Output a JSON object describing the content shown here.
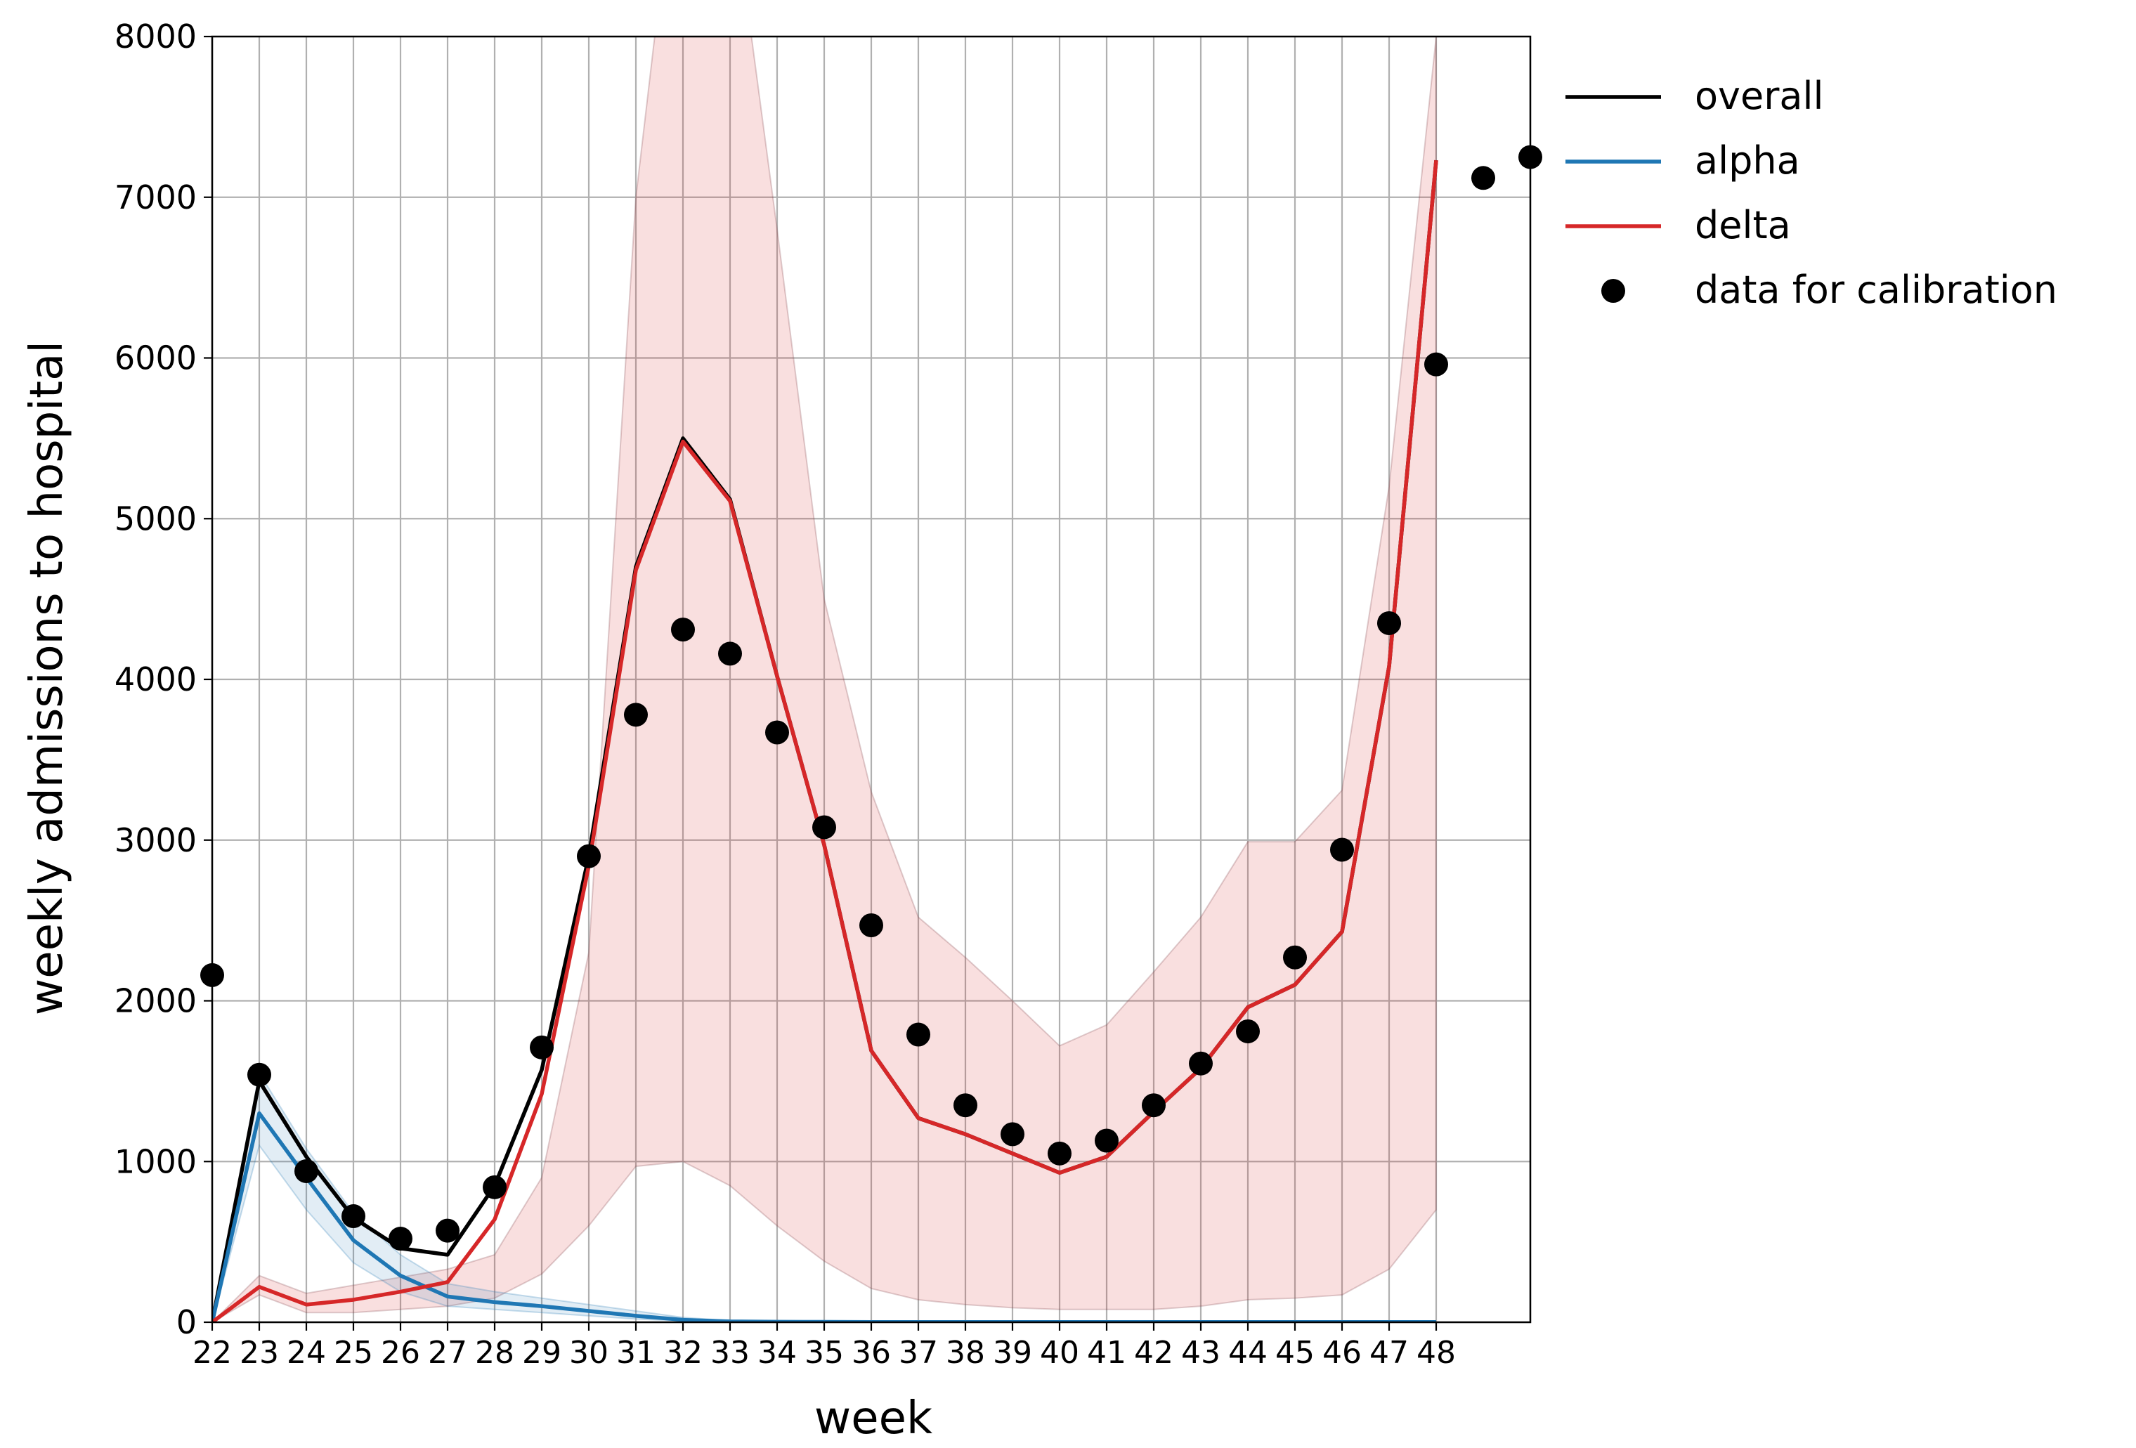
{
  "chart_data": {
    "type": "line",
    "xlabel": "week",
    "ylabel": "weekly admissions to hospital",
    "xlim": [
      22,
      50
    ],
    "ylim": [
      0,
      8000
    ],
    "x_ticks": [
      22,
      23,
      24,
      25,
      26,
      27,
      28,
      29,
      30,
      31,
      32,
      33,
      34,
      35,
      36,
      37,
      38,
      39,
      40,
      41,
      42,
      43,
      44,
      45,
      46,
      47,
      48
    ],
    "y_ticks": [
      0,
      1000,
      2000,
      3000,
      4000,
      5000,
      6000,
      7000,
      8000
    ],
    "grid": true,
    "legend_position": "outside-top-right",
    "colors": {
      "overall": "#000000",
      "alpha": "#1f77b4",
      "delta": "#d62728",
      "band": "#cfa6ad",
      "grid": "#b0b0b0"
    },
    "series": [
      {
        "name": "overall",
        "type": "line",
        "color": "#000000",
        "x": [
          22,
          23,
          24,
          25,
          26,
          27,
          28,
          29,
          30,
          31,
          32,
          33,
          34,
          35,
          36,
          37,
          38,
          39,
          40,
          41,
          42,
          43,
          44,
          45,
          46,
          47,
          48
        ],
        "y": [
          0,
          1500,
          1030,
          650,
          460,
          420,
          850,
          1570,
          2900,
          4700,
          5500,
          5120,
          4020,
          2970,
          1690,
          1270,
          1170,
          1050,
          930,
          1030,
          1310,
          1580,
          1960,
          2100,
          2430,
          4080,
          7230
        ]
      },
      {
        "name": "alpha",
        "type": "line",
        "color": "#1f77b4",
        "x": [
          22,
          23,
          24,
          25,
          26,
          27,
          28,
          29,
          30,
          31,
          32,
          33,
          34,
          35,
          36,
          37,
          38,
          39,
          40,
          41,
          42,
          43,
          44,
          45,
          46,
          47,
          48
        ],
        "y": [
          0,
          1300,
          900,
          510,
          290,
          160,
          125,
          100,
          70,
          40,
          15,
          5,
          3,
          2,
          1,
          1,
          1,
          1,
          1,
          1,
          1,
          1,
          1,
          1,
          1,
          1,
          1
        ],
        "band_low": [
          0,
          1100,
          700,
          370,
          190,
          100,
          80,
          60,
          40,
          20,
          8,
          2,
          1,
          1,
          0,
          0,
          0,
          0,
          0,
          0,
          0,
          0,
          0,
          0,
          0,
          0,
          0
        ],
        "band_high": [
          0,
          1550,
          1080,
          680,
          420,
          240,
          190,
          150,
          110,
          70,
          30,
          10,
          5,
          3,
          2,
          2,
          2,
          2,
          2,
          2,
          2,
          2,
          2,
          2,
          2,
          2,
          2
        ]
      },
      {
        "name": "delta",
        "type": "line",
        "color": "#d62728",
        "x": [
          22,
          23,
          24,
          25,
          26,
          27,
          28,
          29,
          30,
          31,
          32,
          33,
          34,
          35,
          36,
          37,
          38,
          39,
          40,
          41,
          42,
          43,
          44,
          45,
          46,
          47,
          48
        ],
        "y": [
          0,
          220,
          110,
          140,
          190,
          250,
          640,
          1420,
          2840,
          4680,
          5480,
          5110,
          4020,
          2970,
          1690,
          1270,
          1170,
          1050,
          930,
          1030,
          1310,
          1580,
          1960,
          2100,
          2430,
          4080,
          7230
        ],
        "band_low": [
          0,
          170,
          60,
          60,
          80,
          100,
          150,
          300,
          600,
          970,
          1000,
          850,
          600,
          380,
          210,
          140,
          110,
          90,
          80,
          80,
          80,
          100,
          140,
          150,
          170,
          330,
          700
        ],
        "band_high": [
          0,
          290,
          180,
          230,
          280,
          330,
          420,
          900,
          2300,
          7000,
          9500,
          9000,
          6800,
          4500,
          3300,
          2520,
          2270,
          2000,
          1720,
          1850,
          2180,
          2520,
          2990,
          2990,
          3310,
          5200,
          8000
        ]
      },
      {
        "name": "data for calibration",
        "type": "scatter",
        "color": "#000000",
        "x": [
          22,
          23,
          24,
          25,
          26,
          27,
          28,
          29,
          30,
          31,
          32,
          33,
          34,
          35,
          36,
          37,
          38,
          39,
          40,
          41,
          42,
          43,
          44,
          45,
          46,
          47,
          48,
          49,
          50
        ],
        "y": [
          2160,
          1540,
          940,
          660,
          520,
          570,
          840,
          1710,
          2900,
          3780,
          4310,
          4160,
          3670,
          3080,
          2470,
          1790,
          1350,
          1170,
          1050,
          1130,
          1350,
          1610,
          1810,
          2270,
          2940,
          4350,
          5960,
          7120,
          7250
        ]
      }
    ]
  }
}
